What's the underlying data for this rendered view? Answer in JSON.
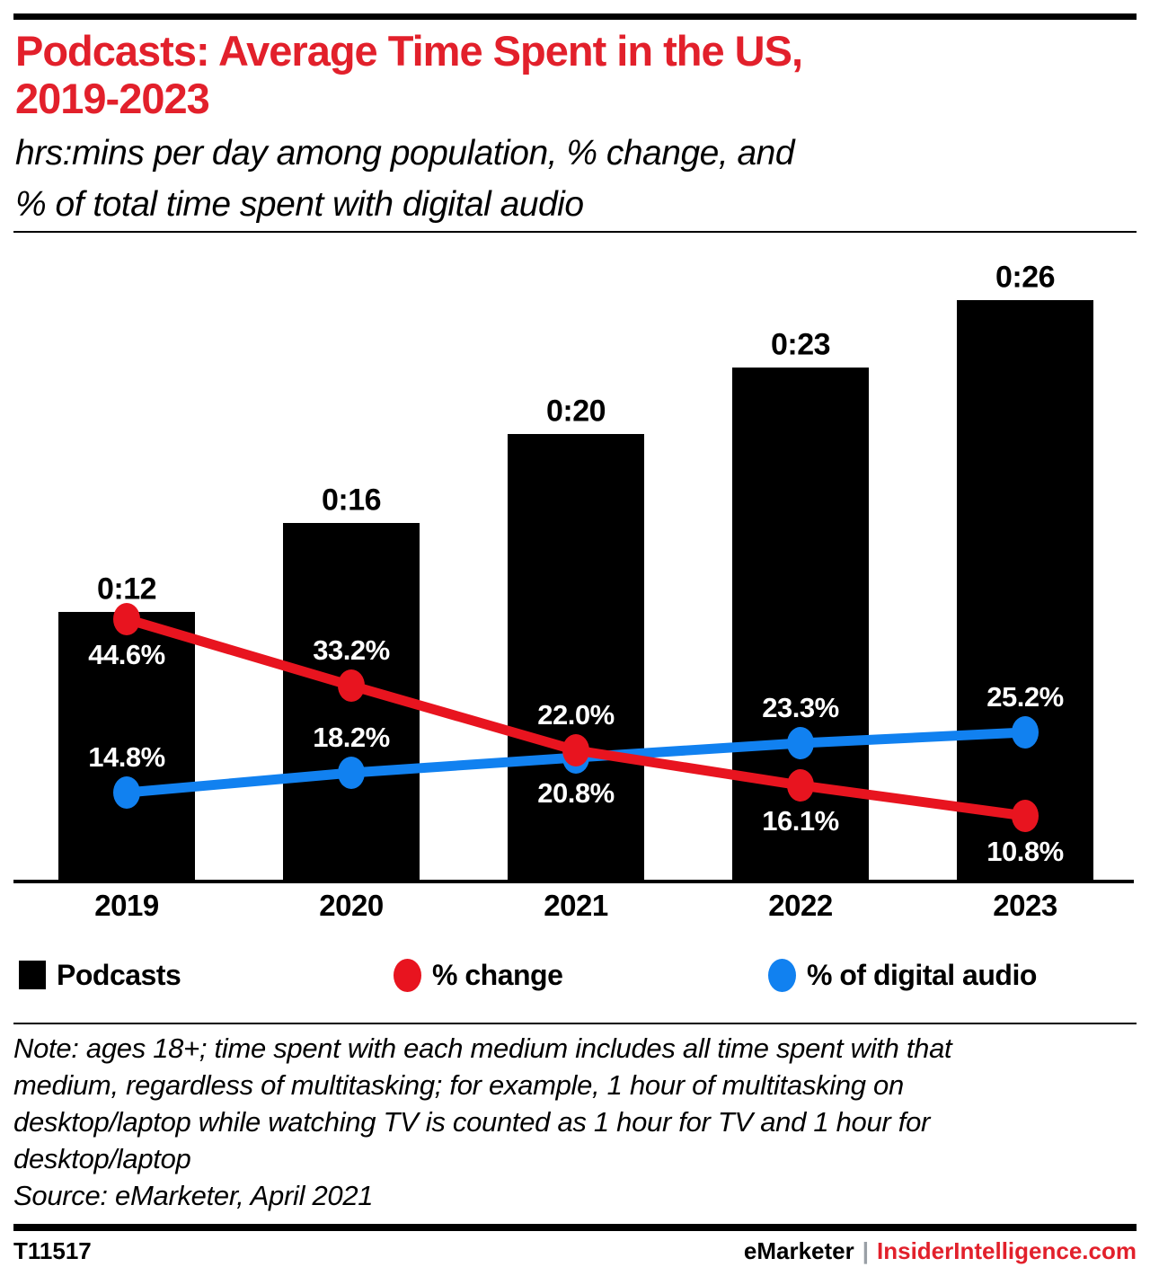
{
  "header": {
    "title": "Podcasts: Average Time Spent in the US,\n2019-2023",
    "subtitle": "hrs:mins per day among population, % change, and\n% of total time spent with digital audio"
  },
  "chart_data": {
    "type": "bar+line",
    "title": "Podcasts: Average Time Spent in the US, 2019-2023",
    "xlabel": "",
    "ylabel": "",
    "categories": [
      "2019",
      "2020",
      "2021",
      "2022",
      "2023"
    ],
    "series": [
      {
        "name": "Podcasts",
        "type": "bar",
        "unit": "hrs:mins per day",
        "value_labels": [
          "0:12",
          "0:16",
          "0:20",
          "0:23",
          "0:26"
        ],
        "values_minutes": [
          12,
          16,
          20,
          23,
          26
        ],
        "color": "#000000"
      },
      {
        "name": "% change",
        "type": "line",
        "values": [
          44.6,
          33.2,
          22.0,
          16.1,
          10.8
        ],
        "value_labels": [
          "44.6%",
          "33.2%",
          "22.0%",
          "16.1%",
          "10.8%"
        ],
        "color": "#e8141f",
        "label_side": [
          "below",
          "above",
          "above",
          "below",
          "below"
        ]
      },
      {
        "name": "% of digital audio",
        "type": "line",
        "values": [
          14.8,
          18.2,
          20.8,
          23.3,
          25.2
        ],
        "value_labels": [
          "14.8%",
          "18.2%",
          "20.8%",
          "23.3%",
          "25.2%"
        ],
        "color": "#1181f0",
        "label_side": [
          "above",
          "above",
          "below",
          "above",
          "above"
        ]
      }
    ],
    "layout_hints": {
      "legend_position": "bottom",
      "grid": false,
      "value_axis_visible": false,
      "data_labels_on_points": true
    }
  },
  "legend": {
    "podcasts": "Podcasts",
    "pct_change": "% change",
    "pct_digital_audio": "% of digital audio"
  },
  "footer": {
    "note": "Note: ages 18+; time spent with each medium includes all time spent with that\nmedium, regardless of multitasking; for example, 1 hour of multitasking on\ndesktop/laptop while watching TV is counted as 1 hour for TV and 1 hour for\ndesktop/laptop",
    "source": "Source: eMarketer, April 2021",
    "chart_id": "T11517",
    "brand_left": "eMarketer",
    "brand_separator": "|",
    "brand_right": "InsiderIntelligence.com"
  },
  "colors": {
    "brand_red": "#e2202b",
    "line_red": "#e8141f",
    "line_blue": "#1181f0",
    "bar_black": "#000000"
  }
}
